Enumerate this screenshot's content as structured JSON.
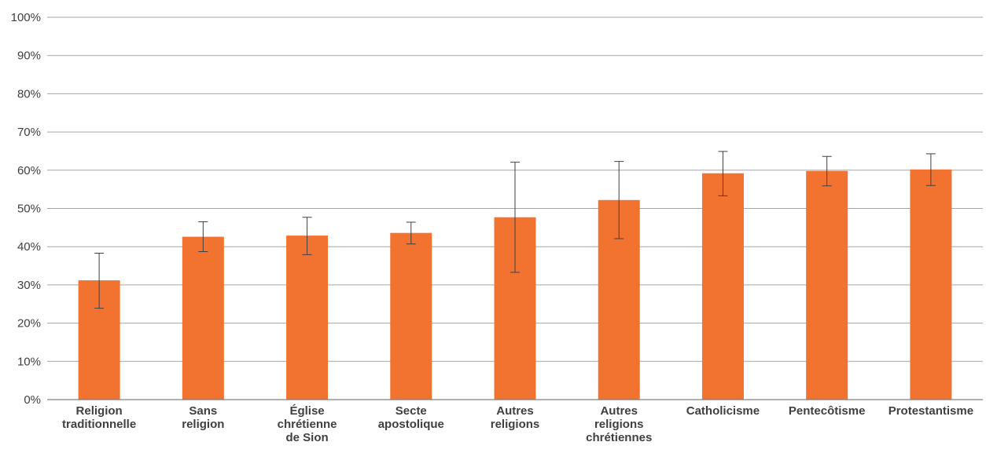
{
  "chart_data": {
    "type": "bar",
    "title": "",
    "xlabel": "",
    "ylabel": "",
    "ylim": [
      0,
      100
    ],
    "y_ticks": [
      "0%",
      "10%",
      "20%",
      "30%",
      "40%",
      "50%",
      "60%",
      "70%",
      "80%",
      "90%",
      "100%"
    ],
    "y_tick_values": [
      0,
      10,
      20,
      30,
      40,
      50,
      60,
      70,
      80,
      90,
      100
    ],
    "grid": true,
    "legend": "none",
    "bar_color": "#f27330",
    "categories": [
      [
        "Religion",
        "traditionnelle"
      ],
      [
        "Sans",
        "religion"
      ],
      [
        "Église",
        "chrétienne",
        "de Sion"
      ],
      [
        "Secte",
        "apostolique"
      ],
      [
        "Autres",
        "religions"
      ],
      [
        "Autres",
        "religions",
        "chrétiennes"
      ],
      [
        "Catholicisme"
      ],
      [
        "Pentecôtisme"
      ],
      [
        "Protestantisme"
      ]
    ],
    "values": [
      31.2,
      42.6,
      42.9,
      43.6,
      47.7,
      52.2,
      59.2,
      59.8,
      60.2
    ],
    "error_low": [
      23.9,
      38.7,
      37.9,
      40.7,
      33.3,
      42.1,
      53.3,
      55.9,
      56.0
    ],
    "error_high": [
      38.3,
      46.5,
      47.7,
      46.4,
      62.1,
      62.3,
      64.9,
      63.6,
      64.3
    ]
  }
}
